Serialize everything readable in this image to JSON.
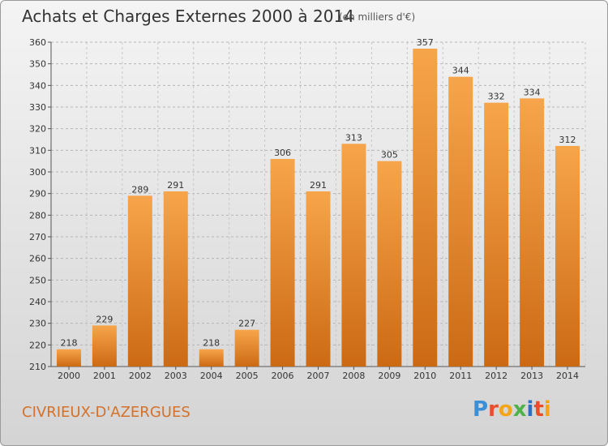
{
  "title": "Achats et Charges Externes 2000 à 2014",
  "subtitle": "(en milliers d'€)",
  "commune": "CIVRIEUX-D'AZERGUES",
  "logo": {
    "letters": [
      "P",
      "r",
      "o",
      "x",
      "i",
      "t",
      "i"
    ],
    "colors": [
      "#3b8fd6",
      "#e94e2a",
      "#f2a516",
      "#4db348",
      "#2b6fc9",
      "#e94e2a",
      "#f2a516"
    ]
  },
  "colors": {
    "bar_top": "#f7a54a",
    "bar_bottom": "#cc6a14",
    "commune_text": "#d4712a"
  },
  "chart_data": {
    "type": "bar",
    "title": "Achats et Charges Externes 2000 à 2014",
    "subtitle": "(en milliers d'€)",
    "categories": [
      "2000",
      "2001",
      "2002",
      "2003",
      "2004",
      "2005",
      "2006",
      "2007",
      "2008",
      "2009",
      "2010",
      "2011",
      "2012",
      "2013",
      "2014"
    ],
    "values": [
      218,
      229,
      289,
      291,
      218,
      227,
      306,
      291,
      313,
      305,
      357,
      344,
      332,
      334,
      312
    ],
    "ylim": [
      210,
      360
    ],
    "yticks": [
      210,
      220,
      230,
      240,
      250,
      260,
      270,
      280,
      290,
      300,
      310,
      320,
      330,
      340,
      350,
      360
    ],
    "grid": "horizontal dashed",
    "data_labels": true
  }
}
